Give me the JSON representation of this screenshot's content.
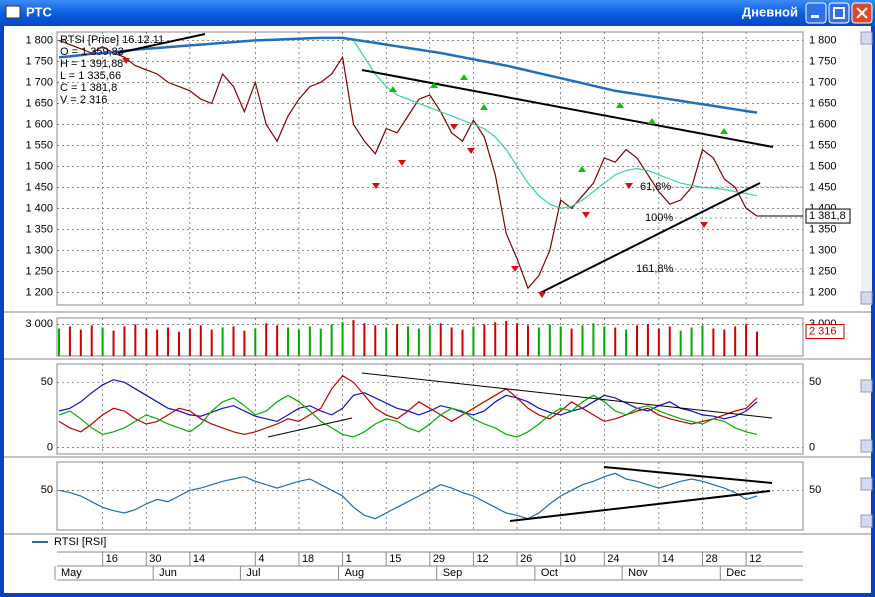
{
  "window": {
    "title": "РТС",
    "period": "Дневной"
  },
  "x_axis": {
    "categories": [
      null,
      null,
      null,
      null,
      "16",
      null,
      null,
      null,
      "30",
      null,
      null,
      null,
      "14",
      null,
      null,
      null,
      null,
      null,
      "4",
      null,
      null,
      null,
      "18",
      null,
      null,
      null,
      "1",
      null,
      null,
      null,
      "15",
      null,
      null,
      null,
      "29",
      null,
      null,
      null,
      "12",
      null,
      null,
      null,
      "26",
      null,
      null,
      null,
      "10",
      null,
      null,
      null,
      "24",
      null,
      null,
      null,
      null,
      "14",
      null,
      null,
      null,
      "28",
      null,
      null,
      null,
      "12",
      null
    ],
    "months": [
      "May",
      null,
      null,
      null,
      null,
      null,
      null,
      null,
      null,
      "Jun",
      null,
      null,
      null,
      null,
      null,
      null,
      null,
      "Jul",
      null,
      null,
      null,
      null,
      null,
      null,
      null,
      null,
      "Aug",
      null,
      null,
      null,
      null,
      null,
      null,
      null,
      null,
      "Sep",
      null,
      null,
      null,
      null,
      null,
      null,
      null,
      null,
      "Oct",
      null,
      null,
      null,
      null,
      null,
      null,
      null,
      "Nov",
      null,
      null,
      null,
      null,
      null,
      null,
      null,
      null,
      "Dec",
      null,
      null,
      null
    ]
  },
  "chart_data": [
    {
      "type": "line",
      "info": [
        "RTSI [Price] 16.12.11",
        "O = 1 359,83",
        "H = 1 391,88",
        "L = 1 335,66",
        "C = 1 381,8",
        "V = 2 316"
      ],
      "annotations": [
        "61,8%",
        "100%",
        "161,8%"
      ],
      "last_value": {
        "value": 1381.8,
        "label": "1 381,8"
      },
      "ylim": [
        1170,
        1820
      ],
      "yticks": [
        {
          "value": 1200,
          "label": "1 200"
        },
        {
          "value": 1250,
          "label": "1 250"
        },
        {
          "value": 1300,
          "label": "1 300"
        },
        {
          "value": 1350,
          "label": "1 350"
        },
        {
          "value": 1400,
          "label": "1 400"
        },
        {
          "value": 1450,
          "label": "1 450"
        },
        {
          "value": 1500,
          "label": "1 500"
        },
        {
          "value": 1550,
          "label": "1 550"
        },
        {
          "value": 1600,
          "label": "1 600"
        },
        {
          "value": 1650,
          "label": "1 650"
        },
        {
          "value": 1700,
          "label": "1 700"
        },
        {
          "value": 1750,
          "label": "1 750"
        },
        {
          "value": 1800,
          "label": "1 800"
        }
      ],
      "grid": true,
      "series": [
        {
          "color": "#800000",
          "values": [
            1800,
            1790,
            1780,
            1770,
            1785,
            1770,
            1760,
            1740,
            1730,
            1720,
            1700,
            1690,
            1680,
            1660,
            1650,
            1720,
            1690,
            1630,
            1700,
            1600,
            1560,
            1620,
            1660,
            1690,
            1700,
            1720,
            1760,
            1600,
            1560,
            1530,
            1590,
            1580,
            1620,
            1660,
            1670,
            1630,
            1580,
            1560,
            1610,
            1570,
            1480,
            1340,
            1280,
            1210,
            1240,
            1300,
            1420,
            1400,
            1430,
            1460,
            1520,
            1510,
            1540,
            1520,
            1480,
            1440,
            1410,
            1420,
            1450,
            1540,
            1520,
            1470,
            1450,
            1400,
            1381.8
          ]
        },
        {
          "color": "#1e6fc0",
          "values": [
            1760,
            1762,
            1765,
            1768,
            1770,
            1772,
            1775,
            1778,
            1780,
            1782,
            1784,
            1786,
            1788,
            1790,
            1792,
            1794,
            1796,
            1798,
            1800,
            1801,
            1802,
            1803,
            1804,
            1805,
            1806,
            1806,
            1806,
            1802,
            1798,
            1794,
            1790,
            1786,
            1782,
            1778,
            1774,
            1770,
            1765,
            1760,
            1755,
            1750,
            1745,
            1740,
            1734,
            1728,
            1722,
            1716,
            1710,
            1704,
            1698,
            1692,
            1686,
            1680,
            1676,
            1672,
            1668,
            1664,
            1660,
            1656,
            1652,
            1648,
            1644,
            1640,
            1636,
            1632,
            1628
          ]
        },
        {
          "color": "#2fd6a0",
          "values": [
            null,
            null,
            null,
            null,
            null,
            null,
            null,
            null,
            null,
            null,
            null,
            null,
            null,
            null,
            null,
            null,
            null,
            null,
            null,
            null,
            null,
            null,
            null,
            null,
            null,
            null,
            null,
            1800,
            1760,
            1720,
            1690,
            1670,
            1660,
            1650,
            1640,
            1630,
            1620,
            1610,
            1600,
            1590,
            1570,
            1540,
            1500,
            1460,
            1430,
            1410,
            1400,
            1405,
            1420,
            1440,
            1460,
            1480,
            1490,
            1495,
            1490,
            1480,
            1470,
            1460,
            1455,
            1450,
            1448,
            1445,
            1440,
            1435,
            1430
          ]
        }
      ]
    },
    {
      "type": "volume",
      "ylim": [
        0,
        3600
      ],
      "yticks": [
        {
          "value": 3000,
          "label": "3 000"
        }
      ],
      "values": [
        2600,
        2800,
        2500,
        2900,
        2700,
        2400,
        2800,
        3000,
        2600,
        2500,
        2700,
        2300,
        2600,
        2900,
        2500,
        2700,
        2800,
        2400,
        2600,
        3100,
        2900,
        2700,
        2500,
        2800,
        2600,
        3000,
        3200,
        3400,
        3100,
        2900,
        2700,
        3000,
        2800,
        2600,
        2900,
        3100,
        2700,
        2500,
        2800,
        3000,
        3200,
        3300,
        3100,
        2900,
        2700,
        3000,
        2800,
        2600,
        2900,
        3100,
        2800,
        2700,
        2500,
        2900,
        3000,
        2600,
        2800,
        2400,
        2700,
        2900,
        2600,
        2500,
        2800,
        3000,
        2316
      ],
      "value_labels": [
        null,
        null,
        null,
        null,
        null,
        null,
        null,
        null,
        null,
        null,
        null,
        null,
        null,
        null,
        null,
        null,
        null,
        null,
        null,
        null,
        null,
        null,
        null,
        null,
        null,
        null,
        null,
        null,
        null,
        null,
        null,
        null,
        null,
        null,
        null,
        null,
        null,
        null,
        null,
        null,
        null,
        null,
        null,
        null,
        null,
        null,
        null,
        null,
        null,
        null,
        null,
        null,
        null,
        null,
        null,
        null,
        null,
        null,
        null,
        null,
        null,
        null,
        null,
        null,
        "2 316"
      ],
      "colors": [
        "#cc0000",
        "#00aa00"
      ]
    },
    {
      "type": "line",
      "ylim": [
        -5,
        64
      ],
      "yticks": [
        0,
        50
      ],
      "series": [
        {
          "color": "#1010c0",
          "values": [
            28,
            30,
            35,
            42,
            48,
            52,
            50,
            45,
            40,
            35,
            30,
            28,
            25,
            24,
            27,
            30,
            32,
            28,
            24,
            22,
            20,
            25,
            30,
            32,
            28,
            25,
            30,
            40,
            42,
            38,
            34,
            30,
            28,
            25,
            28,
            32,
            30,
            27,
            25,
            28,
            35,
            40,
            38,
            35,
            30,
            27,
            25,
            28,
            30,
            35,
            40,
            38,
            34,
            30,
            28,
            32,
            35,
            30,
            28,
            25,
            24,
            22,
            24,
            28,
            35
          ]
        },
        {
          "color": "#c00000",
          "values": [
            20,
            15,
            12,
            18,
            25,
            30,
            28,
            22,
            18,
            20,
            25,
            30,
            28,
            22,
            18,
            15,
            12,
            10,
            12,
            15,
            18,
            22,
            20,
            25,
            30,
            45,
            55,
            50,
            40,
            30,
            25,
            22,
            28,
            35,
            30,
            25,
            20,
            25,
            30,
            35,
            40,
            45,
            38,
            30,
            25,
            22,
            28,
            35,
            30,
            25,
            20,
            22,
            25,
            28,
            30,
            25,
            22,
            20,
            18,
            20,
            22,
            25,
            28,
            30,
            38
          ]
        },
        {
          "color": "#00b000",
          "values": [
            25,
            28,
            22,
            15,
            10,
            12,
            15,
            20,
            25,
            22,
            18,
            15,
            12,
            18,
            28,
            35,
            38,
            32,
            25,
            28,
            35,
            40,
            35,
            28,
            20,
            15,
            10,
            8,
            12,
            18,
            22,
            20,
            15,
            12,
            18,
            25,
            30,
            28,
            22,
            18,
            15,
            10,
            8,
            12,
            18,
            25,
            30,
            28,
            35,
            40,
            35,
            28,
            25,
            30,
            32,
            28,
            25,
            22,
            20,
            18,
            22,
            20,
            15,
            12,
            10
          ]
        }
      ]
    },
    {
      "type": "line",
      "ylim": [
        15,
        75
      ],
      "yticks": [
        50
      ],
      "series": [
        {
          "name": "RTSI [RSI]",
          "color": "#1f6fa8",
          "values": [
            50,
            48,
            45,
            40,
            35,
            32,
            30,
            33,
            38,
            42,
            40,
            45,
            50,
            52,
            55,
            58,
            60,
            62,
            58,
            55,
            52,
            55,
            58,
            60,
            55,
            50,
            45,
            35,
            28,
            25,
            30,
            35,
            40,
            45,
            50,
            55,
            52,
            48,
            45,
            40,
            35,
            30,
            28,
            25,
            30,
            38,
            45,
            50,
            55,
            58,
            62,
            65,
            60,
            58,
            55,
            52,
            55,
            58,
            60,
            58,
            55,
            52,
            48,
            42,
            45
          ]
        }
      ]
    }
  ]
}
